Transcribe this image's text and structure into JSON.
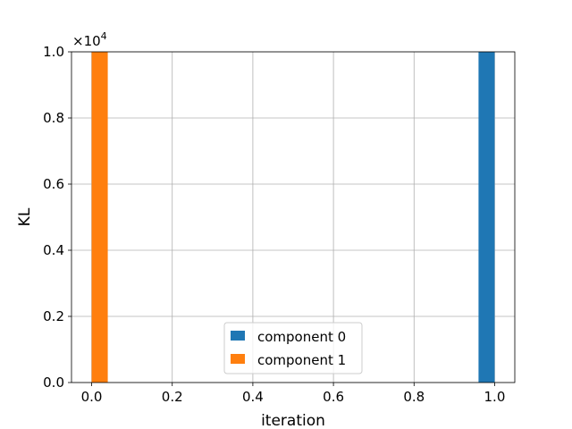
{
  "chart_data": {
    "type": "bar",
    "xlabel": "iteration",
    "ylabel": "KL",
    "y_offset_text": "×10",
    "y_offset_exponent": "4",
    "xlim": [
      -0.05,
      1.05
    ],
    "ylim": [
      0,
      1.0
    ],
    "x_ticks": [
      0.0,
      0.2,
      0.4,
      0.6,
      0.8,
      1.0
    ],
    "x_tick_labels": [
      "0.0",
      "0.2",
      "0.4",
      "0.6",
      "0.8",
      "1.0"
    ],
    "y_ticks": [
      0.0,
      0.2,
      0.4,
      0.6,
      0.8,
      1.0
    ],
    "y_tick_labels": [
      "0.0",
      "0.2",
      "0.4",
      "0.6",
      "0.8",
      "1.0"
    ],
    "grid": true,
    "legend_position": "lower center",
    "series": [
      {
        "name": "component 0",
        "color": "#1f77b4",
        "bars": [
          {
            "x0": 0.96,
            "x1": 1.0,
            "value": 1.0
          }
        ]
      },
      {
        "name": "component 1",
        "color": "#ff7f0e",
        "bars": [
          {
            "x0": 0.0,
            "x1": 0.04,
            "value": 1.0
          }
        ]
      }
    ]
  }
}
